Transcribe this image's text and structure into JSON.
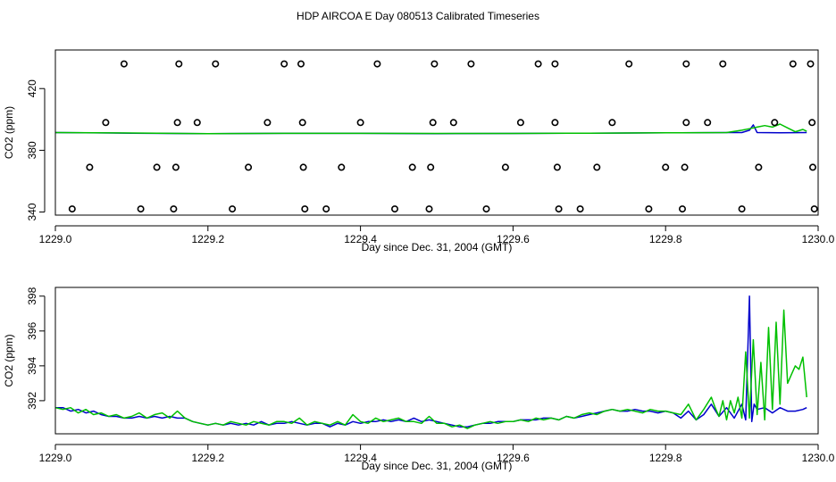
{
  "page_title": "HDP AIRCOA E  Day 080513  Calibrated Timeseries",
  "colors": {
    "green": "#00c000",
    "blue": "#0000cc",
    "points": "#000000",
    "axis": "#000000"
  },
  "chart_data": [
    {
      "type": "line",
      "title": "",
      "xlabel": "Day since Dec. 31, 2004 (GMT)",
      "ylabel": "CO2 (ppm)",
      "xlim": [
        1229.0,
        1230.0
      ],
      "ylim": [
        338,
        445
      ],
      "xticks": [
        1229.0,
        1229.2,
        1229.4,
        1229.6,
        1229.8,
        1230.0
      ],
      "xtick_labels": [
        "1229.0",
        "1229.2",
        "1229.4",
        "1229.6",
        "1229.8",
        "1230.0"
      ],
      "yticks": [
        340,
        380,
        420
      ],
      "ytick_labels": [
        "340",
        "380",
        "420"
      ],
      "grid": false,
      "series": [
        {
          "color": "#00c000",
          "x": [
            1229.0,
            1229.1,
            1229.2,
            1229.3,
            1229.4,
            1229.5,
            1229.6,
            1229.7,
            1229.8,
            1229.88,
            1229.9,
            1229.91,
            1229.92,
            1229.93,
            1229.94,
            1229.95,
            1229.96,
            1229.97,
            1229.98,
            1229.985
          ],
          "y": [
            391.5,
            391.2,
            390.8,
            391.0,
            391.0,
            390.9,
            390.9,
            391.1,
            391.3,
            391.5,
            393.0,
            394.0,
            395.0,
            396.0,
            395.0,
            397.0,
            394.5,
            392.0,
            393.5,
            392.3
          ]
        },
        {
          "color": "#0000cc",
          "x": [
            1229.0,
            1229.1,
            1229.2,
            1229.3,
            1229.4,
            1229.5,
            1229.6,
            1229.7,
            1229.8,
            1229.88,
            1229.9,
            1229.91,
            1229.915,
            1229.92,
            1229.95,
            1229.985
          ],
          "y": [
            391.5,
            391.1,
            390.8,
            391.0,
            391.0,
            390.8,
            390.9,
            391.1,
            391.3,
            391.5,
            391.5,
            393.0,
            396.5,
            391.5,
            391.4,
            391.5
          ]
        }
      ],
      "scatter": {
        "color": "#000000",
        "x": [
          1229.09,
          1229.162,
          1229.21,
          1229.3,
          1229.322,
          1229.422,
          1229.497,
          1229.545,
          1229.633,
          1229.655,
          1229.752,
          1229.827,
          1229.875,
          1229.967,
          1229.99,
          1229.066,
          1229.16,
          1229.186,
          1229.278,
          1229.324,
          1229.4,
          1229.495,
          1229.522,
          1229.61,
          1229.655,
          1229.73,
          1229.827,
          1229.855,
          1229.943,
          1229.992,
          1229.045,
          1229.133,
          1229.158,
          1229.253,
          1229.325,
          1229.375,
          1229.468,
          1229.492,
          1229.59,
          1229.658,
          1229.71,
          1229.8,
          1229.825,
          1229.922,
          1229.993,
          1229.022,
          1229.112,
          1229.155,
          1229.232,
          1229.327,
          1229.355,
          1229.445,
          1229.49,
          1229.565,
          1229.66,
          1229.688,
          1229.778,
          1229.822,
          1229.9,
          1229.995
        ],
        "y": [
          436,
          436,
          436,
          436,
          436,
          436,
          436,
          436,
          436,
          436,
          436,
          436,
          436,
          436,
          436,
          398,
          398,
          398,
          398,
          398,
          398,
          398,
          398,
          398,
          398,
          398,
          398,
          398,
          398,
          398,
          369,
          369,
          369,
          369,
          369,
          369,
          369,
          369,
          369,
          369,
          369,
          369,
          369,
          369,
          369,
          342,
          342,
          342,
          342,
          342,
          342,
          342,
          342,
          342,
          342,
          342,
          342,
          342,
          342,
          342
        ]
      }
    },
    {
      "type": "line",
      "title": "",
      "xlabel": "Day since Dec. 31, 2004 (GMT)",
      "ylabel": "CO2 (ppm)",
      "xlim": [
        1229.0,
        1230.0
      ],
      "ylim": [
        390.1,
        398.5
      ],
      "xticks": [
        1229.0,
        1229.2,
        1229.4,
        1229.6,
        1229.8,
        1230.0
      ],
      "xtick_labels": [
        "1229.0",
        "1229.2",
        "1229.4",
        "1229.6",
        "1229.8",
        "1230.0"
      ],
      "yticks": [
        392,
        394,
        396,
        398
      ],
      "ytick_labels": [
        "392",
        "394",
        "396",
        "398"
      ],
      "grid": false,
      "series": [
        {
          "color": "#00c000",
          "x": [
            1229.0,
            1229.01,
            1229.02,
            1229.03,
            1229.04,
            1229.05,
            1229.06,
            1229.07,
            1229.08,
            1229.09,
            1229.1,
            1229.11,
            1229.12,
            1229.13,
            1229.14,
            1229.15,
            1229.16,
            1229.17,
            1229.18,
            1229.19,
            1229.2,
            1229.21,
            1229.22,
            1229.23,
            1229.24,
            1229.25,
            1229.26,
            1229.27,
            1229.28,
            1229.29,
            1229.3,
            1229.31,
            1229.32,
            1229.33,
            1229.34,
            1229.35,
            1229.36,
            1229.37,
            1229.38,
            1229.39,
            1229.4,
            1229.41,
            1229.42,
            1229.43,
            1229.44,
            1229.45,
            1229.46,
            1229.47,
            1229.48,
            1229.49,
            1229.5,
            1229.51,
            1229.52,
            1229.53,
            1229.54,
            1229.55,
            1229.56,
            1229.57,
            1229.58,
            1229.59,
            1229.6,
            1229.61,
            1229.62,
            1229.63,
            1229.64,
            1229.65,
            1229.66,
            1229.67,
            1229.68,
            1229.69,
            1229.7,
            1229.71,
            1229.72,
            1229.73,
            1229.74,
            1229.75,
            1229.76,
            1229.77,
            1229.78,
            1229.79,
            1229.8,
            1229.81,
            1229.82,
            1229.83,
            1229.84,
            1229.85,
            1229.86,
            1229.865,
            1229.87,
            1229.875,
            1229.88,
            1229.885,
            1229.89,
            1229.895,
            1229.9,
            1229.905,
            1229.91,
            1229.915,
            1229.92,
            1229.925,
            1229.93,
            1229.935,
            1229.94,
            1229.945,
            1229.95,
            1229.955,
            1229.96,
            1229.965,
            1229.97,
            1229.975,
            1229.98,
            1229.985
          ],
          "y": [
            391.6,
            391.5,
            391.6,
            391.3,
            391.5,
            391.2,
            391.3,
            391.1,
            391.2,
            391.0,
            391.1,
            391.3,
            391.0,
            391.2,
            391.3,
            391.0,
            391.4,
            391.0,
            390.8,
            390.7,
            390.6,
            390.7,
            390.6,
            390.8,
            390.7,
            390.6,
            390.8,
            390.7,
            390.6,
            390.8,
            390.8,
            390.7,
            391.0,
            390.6,
            390.8,
            390.7,
            390.6,
            390.8,
            390.6,
            391.2,
            390.8,
            390.7,
            391.0,
            390.8,
            390.9,
            391.0,
            390.8,
            390.8,
            390.7,
            391.1,
            390.7,
            390.7,
            390.5,
            390.6,
            390.4,
            390.6,
            390.7,
            390.8,
            390.7,
            390.8,
            390.8,
            390.9,
            390.8,
            391.0,
            390.9,
            391.0,
            390.9,
            391.1,
            391.0,
            391.2,
            391.3,
            391.2,
            391.4,
            391.5,
            391.4,
            391.5,
            391.4,
            391.3,
            391.5,
            391.4,
            391.4,
            391.3,
            391.2,
            391.8,
            390.9,
            391.5,
            392.2,
            391.6,
            391.1,
            392.0,
            390.9,
            392.0,
            391.3,
            392.2,
            391.0,
            394.8,
            391.0,
            395.5,
            391.2,
            394.2,
            390.9,
            396.2,
            391.5,
            396.5,
            391.8,
            397.2,
            393.0,
            393.5,
            394.0,
            393.8,
            394.5,
            392.2
          ]
        },
        {
          "color": "#0000cc",
          "x": [
            1229.0,
            1229.01,
            1229.02,
            1229.03,
            1229.04,
            1229.05,
            1229.06,
            1229.07,
            1229.08,
            1229.09,
            1229.1,
            1229.11,
            1229.12,
            1229.13,
            1229.14,
            1229.15,
            1229.16,
            1229.17,
            1229.18,
            1229.19,
            1229.2,
            1229.21,
            1229.22,
            1229.23,
            1229.24,
            1229.25,
            1229.26,
            1229.27,
            1229.28,
            1229.29,
            1229.3,
            1229.31,
            1229.32,
            1229.33,
            1229.34,
            1229.35,
            1229.36,
            1229.37,
            1229.38,
            1229.39,
            1229.4,
            1229.41,
            1229.42,
            1229.43,
            1229.44,
            1229.45,
            1229.46,
            1229.47,
            1229.48,
            1229.49,
            1229.5,
            1229.51,
            1229.52,
            1229.53,
            1229.54,
            1229.55,
            1229.56,
            1229.57,
            1229.58,
            1229.59,
            1229.6,
            1229.61,
            1229.62,
            1229.63,
            1229.64,
            1229.65,
            1229.66,
            1229.67,
            1229.68,
            1229.69,
            1229.7,
            1229.71,
            1229.72,
            1229.73,
            1229.74,
            1229.75,
            1229.76,
            1229.77,
            1229.78,
            1229.79,
            1229.8,
            1229.81,
            1229.82,
            1229.83,
            1229.84,
            1229.85,
            1229.86,
            1229.87,
            1229.88,
            1229.89,
            1229.9,
            1229.905,
            1229.91,
            1229.913,
            1229.916,
            1229.92,
            1229.93,
            1229.94,
            1229.95,
            1229.96,
            1229.97,
            1229.98,
            1229.985
          ],
          "y": [
            391.6,
            391.6,
            391.4,
            391.5,
            391.3,
            391.4,
            391.2,
            391.1,
            391.1,
            391.0,
            391.0,
            391.1,
            391.0,
            391.1,
            391.0,
            391.1,
            391.0,
            391.0,
            390.8,
            390.7,
            390.6,
            390.7,
            390.6,
            390.7,
            390.6,
            390.7,
            390.6,
            390.8,
            390.6,
            390.7,
            390.7,
            390.8,
            390.7,
            390.6,
            390.7,
            390.7,
            390.5,
            390.7,
            390.6,
            390.8,
            390.7,
            390.8,
            390.8,
            390.9,
            390.8,
            390.9,
            390.8,
            391.0,
            390.8,
            390.9,
            390.8,
            390.7,
            390.6,
            390.5,
            390.5,
            390.6,
            390.7,
            390.7,
            390.8,
            390.8,
            390.8,
            390.9,
            390.9,
            390.9,
            391.0,
            391.0,
            390.9,
            391.1,
            391.0,
            391.1,
            391.2,
            391.3,
            391.4,
            391.5,
            391.4,
            391.4,
            391.5,
            391.4,
            391.4,
            391.3,
            391.4,
            391.3,
            391.0,
            391.4,
            390.9,
            391.2,
            391.8,
            391.1,
            391.6,
            391.0,
            391.8,
            390.9,
            398.0,
            390.8,
            391.8,
            391.5,
            391.6,
            391.3,
            391.6,
            391.4,
            391.4,
            391.5,
            391.6
          ]
        }
      ]
    }
  ]
}
